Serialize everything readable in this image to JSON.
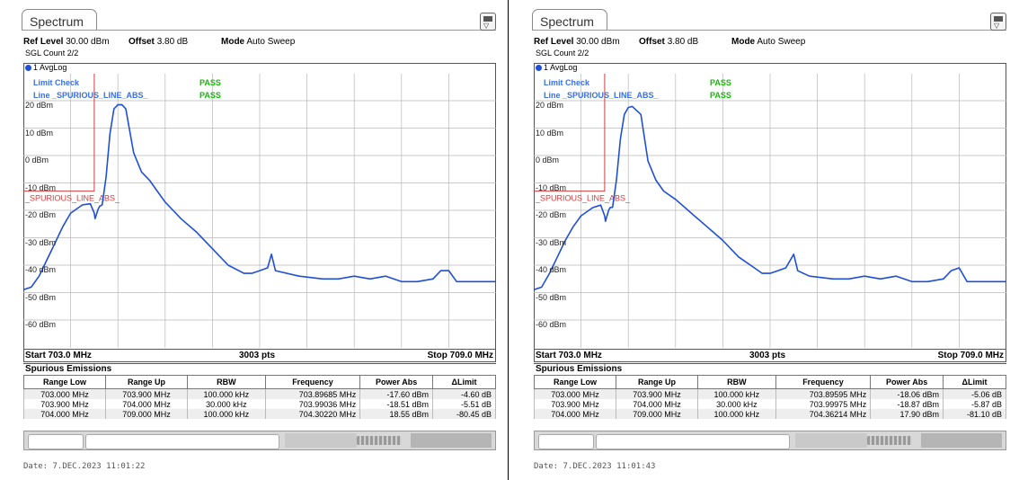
{
  "colors": {
    "trace": "#1f4fd6",
    "limit_line": "#d04040",
    "pass": "#0fbd00",
    "limit_text": "#3a6fe0",
    "grid": "#b8b8b8"
  },
  "icons": {
    "preset": "preset-icon"
  },
  "panels": [
    {
      "tab": "Spectrum",
      "ref_level_label": "Ref Level",
      "ref_level_value": "30.00 dBm",
      "offset_label": "Offset",
      "offset_value": "3.80 dB",
      "mode_label": "Mode",
      "mode_value": "Auto Sweep",
      "sgl_count": "SGL Count 2/2",
      "trace_label": "1 AvgLog",
      "limit_check": "Limit Check",
      "limit_check_result": "PASS",
      "line_label": "Line _SPURIOUS_LINE_ABS_",
      "line_result": "PASS",
      "limit_line_name": "_SPURIOUS_LINE_ABS_",
      "y_ticks": [
        "20 dBm",
        "10 dBm",
        "0 dBm",
        "-10 dBm",
        "-20 dBm",
        "-30 dBm",
        "-40 dBm",
        "-50 dBm",
        "-60 dBm"
      ],
      "start": "Start 703.0 MHz",
      "pts": "3003 pts",
      "stop": "Stop 709.0 MHz",
      "spur_title": "Spurious Emissions",
      "columns": [
        "Range Low",
        "Range Up",
        "RBW",
        "Frequency",
        "Power Abs",
        "ΔLimit"
      ],
      "rows": [
        [
          "703.000 MHz",
          "703.900 MHz",
          "100.000 kHz",
          "703.89685 MHz",
          "-17.60 dBm",
          "-4.60 dB"
        ],
        [
          "703.900 MHz",
          "704.000 MHz",
          "30.000 kHz",
          "703.99036 MHz",
          "-18.51 dBm",
          "-5.51 dB"
        ],
        [
          "704.000 MHz",
          "709.000 MHz",
          "100.000 kHz",
          "704.30220 MHz",
          "18.55 dBm",
          "-80.45 dB"
        ]
      ],
      "date": "Date: 7.DEC.2023  11:01:22"
    },
    {
      "tab": "Spectrum",
      "ref_level_label": "Ref Level",
      "ref_level_value": "30.00 dBm",
      "offset_label": "Offset",
      "offset_value": "3.80 dB",
      "mode_label": "Mode",
      "mode_value": "Auto Sweep",
      "sgl_count": "SGL Count 2/2",
      "trace_label": "1 AvgLog",
      "limit_check": "Limit Check",
      "limit_check_result": "PASS",
      "line_label": "Line _SPURIOUS_LINE_ABS_",
      "line_result": "PASS",
      "limit_line_name": "_SPURIOUS_LINE_ABS_",
      "y_ticks": [
        "20 dBm",
        "10 dBm",
        "0 dBm",
        "-10 dBm",
        "-20 dBm",
        "-30 dBm",
        "-40 dBm",
        "-50 dBm",
        "-60 dBm"
      ],
      "start": "Start 703.0 MHz",
      "pts": "3003 pts",
      "stop": "Stop 709.0 MHz",
      "spur_title": "Spurious Emissions",
      "columns": [
        "Range Low",
        "Range Up",
        "RBW",
        "Frequency",
        "Power Abs",
        "ΔLimit"
      ],
      "rows": [
        [
          "703.000 MHz",
          "703.900 MHz",
          "100.000 kHz",
          "703.89595 MHz",
          "-18.06 dBm",
          "-5.06 dB"
        ],
        [
          "703.900 MHz",
          "704.000 MHz",
          "30.000 kHz",
          "703.99975 MHz",
          "-18.87 dBm",
          "-5.87 dB"
        ],
        [
          "704.000 MHz",
          "709.000 MHz",
          "100.000 kHz",
          "704.36214 MHz",
          "17.90 dBm",
          "-81.10 dB"
        ]
      ],
      "date": "Date: 7.DEC.2023  11:01:43"
    }
  ],
  "chart_data": [
    {
      "type": "line",
      "xlim": [
        703.0,
        709.0
      ],
      "ylim": [
        -70,
        30
      ],
      "grid": true,
      "limit_line": {
        "x": [
          703.0,
          703.9,
          703.9
        ],
        "y": [
          -13,
          -13,
          30
        ]
      },
      "series": [
        {
          "x": [
            703.0,
            703.1,
            703.2,
            703.3,
            703.4,
            703.5,
            703.6,
            703.75,
            703.85,
            703.9,
            703.91,
            703.95,
            703.97,
            704.0,
            704.05,
            704.1,
            704.15,
            704.2,
            704.25,
            704.3,
            704.4,
            704.5,
            704.6,
            704.7,
            704.8,
            704.9,
            705.0,
            705.2,
            705.4,
            705.6,
            705.8,
            705.9,
            706.0,
            706.1,
            706.15,
            706.2,
            706.5,
            706.8,
            707.0,
            707.2,
            707.4,
            707.6,
            707.8,
            708.0,
            708.2,
            708.3,
            708.4,
            708.5,
            708.6,
            708.7,
            709.0
          ],
          "y": [
            -49,
            -48,
            -44,
            -38,
            -32,
            -26,
            -21,
            -18,
            -17.6,
            -21,
            -23,
            -19.5,
            -18.5,
            -18,
            -8,
            8,
            17,
            18.5,
            18.55,
            17,
            1,
            -6,
            -9,
            -13,
            -17,
            -20,
            -23,
            -28,
            -34,
            -40,
            -43,
            -43,
            -42,
            -41,
            -36,
            -42,
            -44,
            -45,
            -45,
            -44,
            -45,
            -44,
            -46,
            -46,
            -45,
            -42,
            -42,
            -46,
            -46,
            -46,
            -46
          ]
        }
      ]
    },
    {
      "type": "line",
      "xlim": [
        703.0,
        709.0
      ],
      "ylim": [
        -70,
        30
      ],
      "grid": true,
      "limit_line": {
        "x": [
          703.0,
          703.9,
          703.9
        ],
        "y": [
          -13,
          -13,
          30
        ]
      },
      "series": [
        {
          "x": [
            703.0,
            703.1,
            703.2,
            703.3,
            703.4,
            703.5,
            703.6,
            703.75,
            703.85,
            703.9,
            703.91,
            703.95,
            703.97,
            704.0,
            704.05,
            704.1,
            704.15,
            704.2,
            704.25,
            704.36,
            704.45,
            704.55,
            704.65,
            704.8,
            705.0,
            705.2,
            705.4,
            705.6,
            705.8,
            705.9,
            706.0,
            706.1,
            706.2,
            706.3,
            706.35,
            706.5,
            706.8,
            707.0,
            707.2,
            707.4,
            707.6,
            707.8,
            708.0,
            708.2,
            708.3,
            708.4,
            708.5,
            708.6,
            708.8,
            709.0
          ],
          "y": [
            -49,
            -48,
            -43,
            -37,
            -31,
            -26,
            -22,
            -19,
            -18.1,
            -22,
            -24,
            -20,
            -19,
            -18.9,
            -9,
            6,
            15,
            17.5,
            17.9,
            15,
            -2,
            -9,
            -13,
            -16,
            -21,
            -26,
            -31,
            -37,
            -41,
            -43,
            -43,
            -42,
            -41,
            -36,
            -42,
            -44,
            -45,
            -45,
            -44,
            -45,
            -44,
            -46,
            -46,
            -45,
            -42,
            -41,
            -46,
            -46,
            -46,
            -46
          ]
        }
      ]
    }
  ]
}
